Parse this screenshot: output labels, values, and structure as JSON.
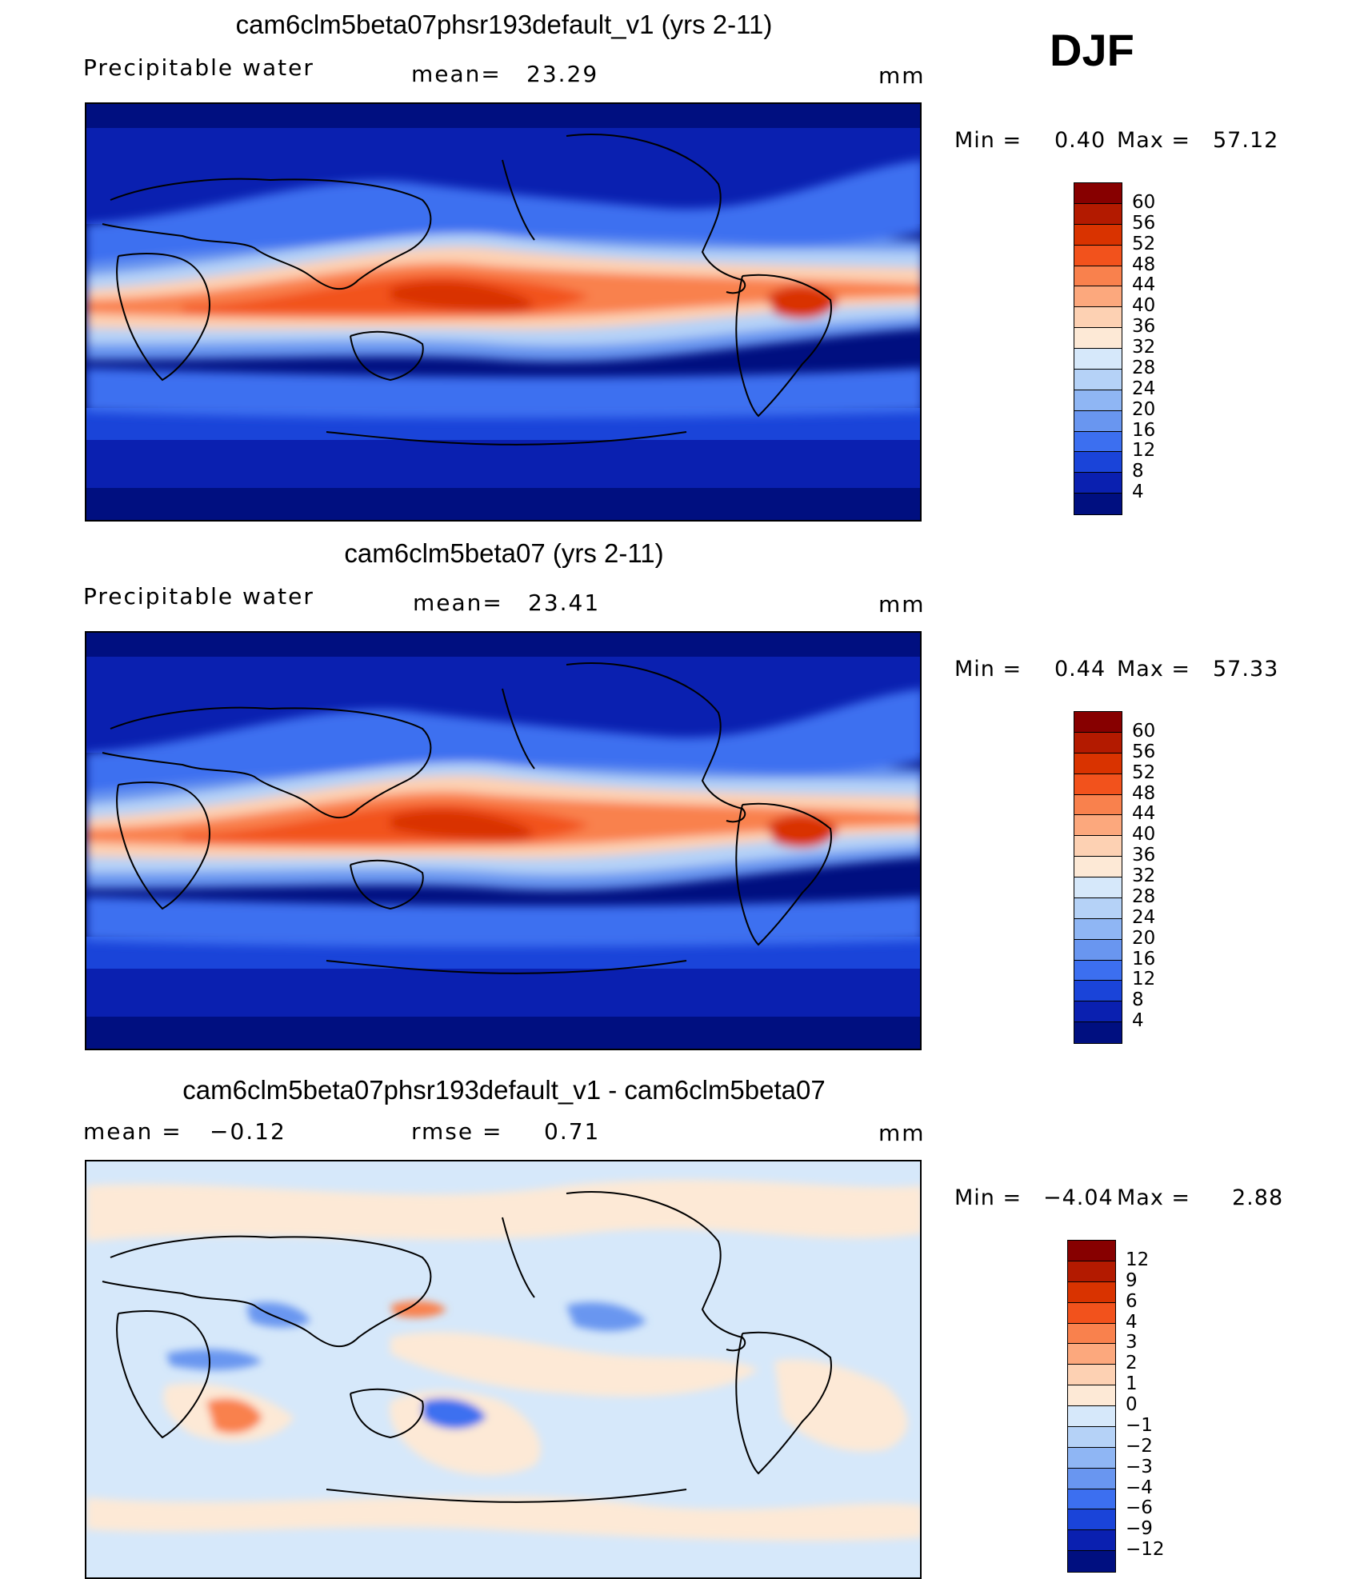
{
  "season": "DJF",
  "panels": [
    {
      "title": "cam6clm5beta07phsr193default_v1 (yrs 2-11)",
      "left_label": "Precipitable  water",
      "mid_label": "mean=",
      "mid_value": "23.29",
      "units": "mm",
      "min_label": "Min  =",
      "min_value": "0.40",
      "max_label": "Max  =",
      "max_value": "57.12",
      "kind": "field"
    },
    {
      "title": "cam6clm5beta07 (yrs 2-11)",
      "left_label": "Precipitable  water",
      "mid_label": "mean=",
      "mid_value": "23.41",
      "units": "mm",
      "min_label": "Min  =",
      "min_value": "0.44",
      "max_label": "Max  =",
      "max_value": "57.33",
      "kind": "field"
    },
    {
      "title": "cam6clm5beta07phsr193default_v1 - cam6clm5beta07",
      "left_label": "mean  =",
      "left_value": "−0.12",
      "mid_label": "rmse  =",
      "mid_value": "0.71",
      "units": "mm",
      "min_label": "Min  =",
      "min_value": "−4.04",
      "max_label": "Max  =",
      "max_value": "2.88",
      "kind": "diff"
    }
  ],
  "colorbars": {
    "field": {
      "labels": [
        "60",
        "56",
        "52",
        "48",
        "44",
        "40",
        "36",
        "32",
        "28",
        "24",
        "20",
        "16",
        "12",
        "8",
        "4"
      ],
      "colors": [
        "#870000",
        "#b31a00",
        "#d93300",
        "#f2521c",
        "#f9814d",
        "#fca87d",
        "#fdd1b3",
        "#fde9d6",
        "#d6e8fa",
        "#b5d2f7",
        "#8fb6f4",
        "#6996f0",
        "#3c6ff0",
        "#1a44d9",
        "#0a20b0",
        "#000f80"
      ]
    },
    "diff": {
      "labels": [
        "12",
        "9",
        "6",
        "4",
        "3",
        "2",
        "1",
        "0",
        "−1",
        "−2",
        "−3",
        "−4",
        "−6",
        "−9",
        "−12"
      ],
      "colors": [
        "#870000",
        "#b31a00",
        "#d93300",
        "#f2521c",
        "#f9814d",
        "#fca87d",
        "#fdd1b3",
        "#fde9d6",
        "#d6e8fa",
        "#b5d2f7",
        "#8fb6f4",
        "#6996f0",
        "#3c6ff0",
        "#1a44d9",
        "#0a20b0",
        "#000f80"
      ]
    }
  }
}
